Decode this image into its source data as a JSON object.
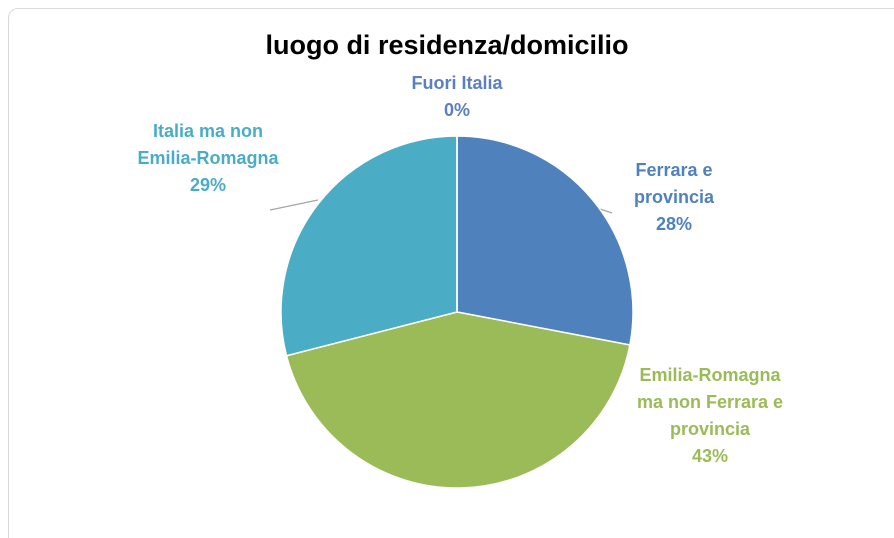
{
  "chart_data": {
    "type": "pie",
    "title": "luogo di residenza/domicilio",
    "categories": [
      "Ferrara e provincia",
      "Emilia-Romagna ma non Ferrara e provincia",
      "Italia ma non Emilia-Romagna",
      "Fuori Italia"
    ],
    "values": [
      28,
      43,
      29,
      0
    ],
    "value_labels": [
      "28%",
      "43%",
      "29%",
      "0%"
    ],
    "colors": [
      "#4f81bd",
      "#9bbb59",
      "#4bacc6",
      "#5b7fbf"
    ]
  }
}
